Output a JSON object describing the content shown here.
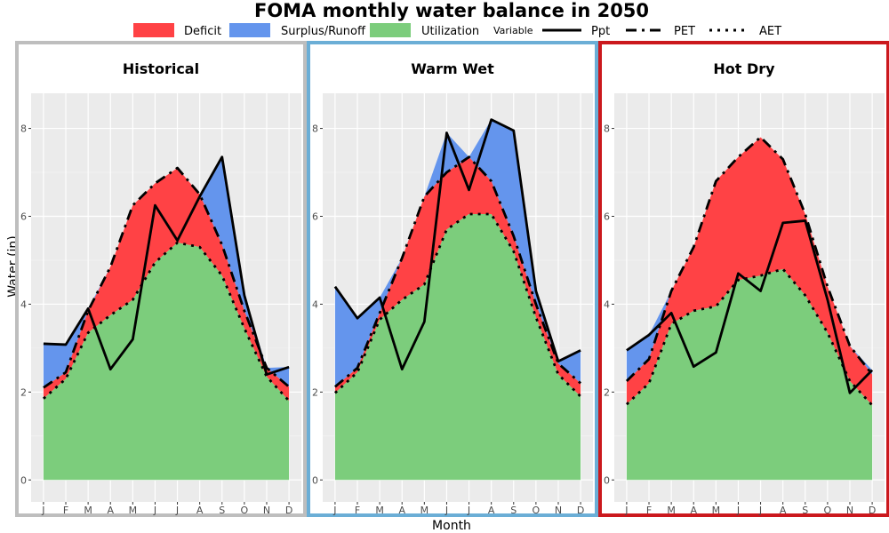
{
  "chart_data": {
    "type": "area",
    "title": "FOMA monthly water balance in 2050",
    "xlabel": "Month",
    "ylabel": "Water (in)",
    "ylim": [
      -0.5,
      8.8
    ],
    "yticks": [
      0,
      2,
      4,
      6,
      8
    ],
    "grid": true,
    "legend_position": "top",
    "legend": {
      "fill_items": [
        {
          "label": "Deficit",
          "color": "#ff4245"
        },
        {
          "label": "Surplus/Runoff",
          "color": "#6495ed"
        },
        {
          "label": "Utilization",
          "color": "#7ccd7c"
        }
      ],
      "line_title": "Variable",
      "line_items": [
        {
          "label": "Ppt",
          "style": "solid"
        },
        {
          "label": "PET",
          "style": "dashed"
        },
        {
          "label": "AET",
          "style": "dotted"
        }
      ]
    },
    "categories": [
      "J",
      "F",
      "M",
      "A",
      "M",
      "J",
      "J",
      "A",
      "S",
      "O",
      "N",
      "D"
    ],
    "panels": [
      {
        "name": "Historical",
        "border_color": "#bebebe",
        "ppt": [
          3.1,
          3.08,
          3.9,
          2.52,
          3.2,
          6.25,
          5.45,
          6.45,
          7.35,
          4.2,
          2.4,
          2.57
        ],
        "pet": [
          2.1,
          2.45,
          3.85,
          4.85,
          6.25,
          6.75,
          7.1,
          6.5,
          5.35,
          3.85,
          2.55,
          2.12
        ],
        "aet": [
          1.85,
          2.3,
          3.35,
          3.75,
          4.1,
          4.95,
          5.4,
          5.3,
          4.65,
          3.45,
          2.35,
          1.8
        ]
      },
      {
        "name": "Warm Wet",
        "border_color": "#6baed6",
        "ppt": [
          4.4,
          3.68,
          4.15,
          2.52,
          3.6,
          7.9,
          6.6,
          8.2,
          7.95,
          4.3,
          2.7,
          2.95
        ],
        "pet": [
          2.12,
          2.55,
          3.8,
          5.05,
          6.45,
          7.0,
          7.35,
          6.8,
          5.55,
          4.0,
          2.65,
          2.2
        ],
        "aet": [
          1.98,
          2.45,
          3.65,
          4.1,
          4.45,
          5.7,
          6.05,
          6.05,
          5.2,
          3.7,
          2.4,
          1.9
        ]
      },
      {
        "name": "Hot Dry",
        "border_color": "#cb181d",
        "ppt": [
          2.95,
          3.3,
          3.8,
          2.58,
          2.9,
          4.7,
          4.3,
          5.85,
          5.9,
          4.1,
          1.98,
          2.5
        ],
        "pet": [
          2.25,
          2.75,
          4.3,
          5.3,
          6.8,
          7.35,
          7.8,
          7.3,
          6.05,
          4.4,
          3.05,
          2.4
        ],
        "aet": [
          1.72,
          2.2,
          3.55,
          3.85,
          3.95,
          4.55,
          4.65,
          4.8,
          4.2,
          3.35,
          2.25,
          1.7
        ]
      }
    ]
  }
}
